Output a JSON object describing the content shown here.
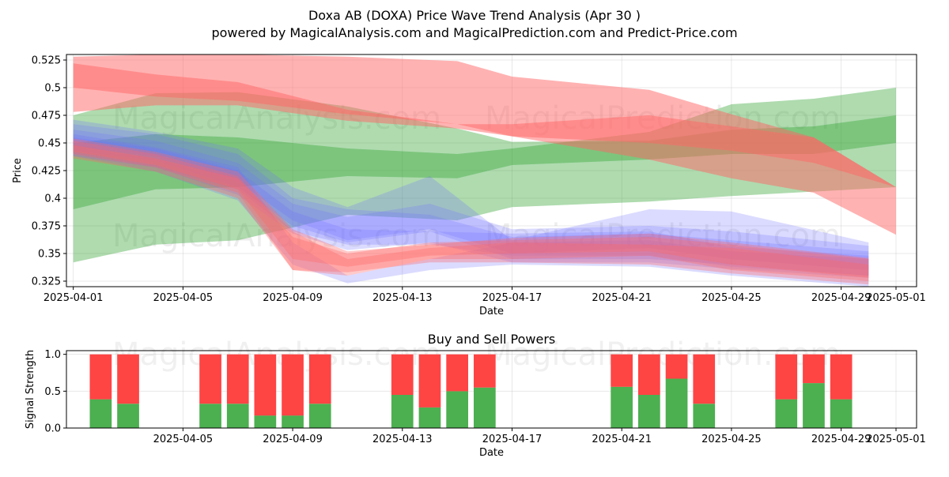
{
  "title_line1": "Doxa AB (DOXA) Price Wave Trend Analysis (Apr 30 )",
  "title_line2": "powered by MagicalAnalysis.com and MagicalPrediction.com and Predict-Price.com",
  "watermark_1": "MagicalAnalysis.com",
  "watermark_2": "MagicalPrediction.com",
  "colors": {
    "green_band": "#2ca02c",
    "red_band": "#ff6666",
    "blue_band": "#6f6fff",
    "buy": "#4caf50",
    "sell": "#ff4444"
  },
  "chart_data": [
    {
      "type": "area",
      "title": "",
      "xlabel": "Date",
      "ylabel": "Price",
      "x_range": [
        "2025-03-31T18:00",
        "2025-05-01T18:00"
      ],
      "ylim": [
        0.32,
        0.53
      ],
      "x_ticks": [
        "2025-04-01",
        "2025-04-05",
        "2025-04-09",
        "2025-04-13",
        "2025-04-17",
        "2025-04-21",
        "2025-04-25",
        "2025-04-29",
        "2025-05-01"
      ],
      "y_ticks": [
        0.325,
        0.35,
        0.375,
        0.4,
        0.425,
        0.45,
        0.475,
        0.5,
        0.525
      ],
      "grid": true,
      "series": [
        {
          "color": "green",
          "x": [
            "2025-04-01",
            "2025-04-04",
            "2025-04-07",
            "2025-04-11",
            "2025-04-15",
            "2025-04-17",
            "2025-04-22",
            "2025-04-25",
            "2025-04-28",
            "2025-05-01"
          ],
          "upper": [
            0.475,
            0.495,
            0.496,
            0.483,
            0.463,
            0.451,
            0.452,
            0.462,
            0.465,
            0.475
          ],
          "lower": [
            0.39,
            0.408,
            0.41,
            0.42,
            0.418,
            0.43,
            0.435,
            0.44,
            0.44,
            0.45
          ]
        },
        {
          "color": "green",
          "x": [
            "2025-04-01",
            "2025-04-04",
            "2025-04-07",
            "2025-04-11",
            "2025-04-15",
            "2025-04-17",
            "2025-04-22",
            "2025-04-25",
            "2025-04-28",
            "2025-05-01"
          ],
          "upper": [
            0.45,
            0.458,
            0.455,
            0.445,
            0.44,
            0.445,
            0.46,
            0.485,
            0.49,
            0.5
          ],
          "lower": [
            0.342,
            0.358,
            0.362,
            0.385,
            0.38,
            0.392,
            0.397,
            0.402,
            0.406,
            0.41
          ]
        },
        {
          "color": "red",
          "x": [
            "2025-04-01",
            "2025-04-04",
            "2025-04-07",
            "2025-04-11",
            "2025-04-15",
            "2025-04-17",
            "2025-04-22",
            "2025-04-25",
            "2025-04-28",
            "2025-05-01"
          ],
          "upper": [
            0.528,
            0.53,
            0.53,
            0.528,
            0.524,
            0.51,
            0.498,
            0.476,
            0.455,
            0.41
          ],
          "lower": [
            0.5,
            0.492,
            0.488,
            0.476,
            0.467,
            0.456,
            0.45,
            0.443,
            0.432,
            0.41
          ]
        },
        {
          "color": "red",
          "x": [
            "2025-04-01",
            "2025-04-04",
            "2025-04-07",
            "2025-04-11",
            "2025-04-15",
            "2025-04-17",
            "2025-04-22",
            "2025-04-25",
            "2025-04-28",
            "2025-05-01"
          ],
          "upper": [
            0.522,
            0.512,
            0.505,
            0.48,
            0.467,
            0.467,
            0.475,
            0.465,
            0.455,
            0.41
          ],
          "lower": [
            0.478,
            0.484,
            0.484,
            0.47,
            0.463,
            0.456,
            0.435,
            0.418,
            0.405,
            0.367
          ]
        },
        {
          "color": "blue",
          "x": [
            "2025-04-01",
            "2025-04-04",
            "2025-04-07",
            "2025-04-09",
            "2025-04-11",
            "2025-04-14",
            "2025-04-17",
            "2025-04-22",
            "2025-04-25",
            "2025-04-30"
          ],
          "upper": [
            0.467,
            0.458,
            0.44,
            0.4,
            0.39,
            0.385,
            0.365,
            0.368,
            0.362,
            0.352
          ],
          "lower": [
            0.443,
            0.434,
            0.41,
            0.375,
            0.36,
            0.37,
            0.345,
            0.345,
            0.34,
            0.33
          ]
        },
        {
          "color": "blue",
          "x": [
            "2025-04-01",
            "2025-04-04",
            "2025-04-07",
            "2025-04-09",
            "2025-04-11",
            "2025-04-14",
            "2025-04-17",
            "2025-04-22",
            "2025-04-25",
            "2025-04-30"
          ],
          "upper": [
            0.462,
            0.452,
            0.432,
            0.395,
            0.383,
            0.395,
            0.372,
            0.375,
            0.37,
            0.357
          ],
          "lower": [
            0.44,
            0.428,
            0.403,
            0.368,
            0.353,
            0.36,
            0.342,
            0.342,
            0.336,
            0.328
          ]
        },
        {
          "color": "blue",
          "x": [
            "2025-04-01",
            "2025-04-04",
            "2025-04-07",
            "2025-04-09",
            "2025-04-11",
            "2025-04-14",
            "2025-04-17",
            "2025-04-22",
            "2025-04-25",
            "2025-04-30"
          ],
          "upper": [
            0.471,
            0.46,
            0.445,
            0.41,
            0.392,
            0.42,
            0.362,
            0.39,
            0.388,
            0.36
          ],
          "lower": [
            0.447,
            0.438,
            0.415,
            0.38,
            0.362,
            0.372,
            0.35,
            0.355,
            0.345,
            0.335
          ]
        },
        {
          "color": "blue",
          "x": [
            "2025-04-01",
            "2025-04-04",
            "2025-04-07",
            "2025-04-09",
            "2025-04-11",
            "2025-04-14",
            "2025-04-17",
            "2025-04-22",
            "2025-04-25",
            "2025-04-30"
          ],
          "upper": [
            0.458,
            0.446,
            0.428,
            0.36,
            0.33,
            0.345,
            0.36,
            0.362,
            0.352,
            0.345
          ],
          "lower": [
            0.438,
            0.424,
            0.398,
            0.34,
            0.323,
            0.335,
            0.34,
            0.338,
            0.33,
            0.32
          ]
        },
        {
          "color": "blue",
          "x": [
            "2025-04-01",
            "2025-04-04",
            "2025-04-07",
            "2025-04-09",
            "2025-04-11",
            "2025-04-14",
            "2025-04-17",
            "2025-04-22",
            "2025-04-25",
            "2025-04-30"
          ],
          "upper": [
            0.455,
            0.445,
            0.425,
            0.388,
            0.372,
            0.37,
            0.368,
            0.37,
            0.356,
            0.348
          ],
          "lower": [
            0.438,
            0.428,
            0.408,
            0.37,
            0.358,
            0.358,
            0.348,
            0.348,
            0.338,
            0.33
          ]
        },
        {
          "color": "red",
          "x": [
            "2025-04-01",
            "2025-04-04",
            "2025-04-07",
            "2025-04-09",
            "2025-04-11",
            "2025-04-14",
            "2025-04-17",
            "2025-04-22",
            "2025-04-25",
            "2025-04-30"
          ],
          "upper": [
            0.452,
            0.44,
            0.42,
            0.365,
            0.35,
            0.36,
            0.362,
            0.365,
            0.358,
            0.345
          ],
          "lower": [
            0.44,
            0.428,
            0.405,
            0.335,
            0.33,
            0.345,
            0.345,
            0.348,
            0.335,
            0.325
          ]
        },
        {
          "color": "red",
          "x": [
            "2025-04-01",
            "2025-04-04",
            "2025-04-07",
            "2025-04-09",
            "2025-04-11",
            "2025-04-14",
            "2025-04-17",
            "2025-04-22",
            "2025-04-25",
            "2025-04-30"
          ],
          "upper": [
            0.448,
            0.436,
            0.418,
            0.37,
            0.345,
            0.355,
            0.36,
            0.358,
            0.355,
            0.34
          ],
          "lower": [
            0.436,
            0.424,
            0.4,
            0.335,
            0.333,
            0.342,
            0.342,
            0.34,
            0.332,
            0.322
          ]
        },
        {
          "color": "red",
          "x": [
            "2025-04-01",
            "2025-04-04",
            "2025-04-07",
            "2025-04-09",
            "2025-04-11",
            "2025-04-14",
            "2025-04-17",
            "2025-04-22",
            "2025-04-25",
            "2025-04-30"
          ],
          "upper": [
            0.454,
            0.442,
            0.424,
            0.372,
            0.352,
            0.358,
            0.364,
            0.368,
            0.36,
            0.346
          ],
          "lower": [
            0.442,
            0.43,
            0.408,
            0.345,
            0.338,
            0.348,
            0.35,
            0.352,
            0.34,
            0.328
          ]
        }
      ]
    },
    {
      "type": "bar",
      "title": "Buy and Sell Powers",
      "xlabel": "Date",
      "ylabel": "Signal Strength",
      "x_range": [
        "2025-03-31T18:00",
        "2025-05-01T18:00"
      ],
      "ylim": [
        0,
        1.05
      ],
      "x_ticks": [
        "2025-04-05",
        "2025-04-09",
        "2025-04-13",
        "2025-04-17",
        "2025-04-21",
        "2025-04-25",
        "2025-04-29",
        "2025-05-01"
      ],
      "y_ticks": [
        "0.0",
        "0.5",
        "1.0"
      ],
      "grid": true,
      "dates": [
        "2025-04-02",
        "2025-04-03",
        "2025-04-06",
        "2025-04-07",
        "2025-04-08",
        "2025-04-09",
        "2025-04-10",
        "2025-04-13",
        "2025-04-14",
        "2025-04-15",
        "2025-04-16",
        "2025-04-21",
        "2025-04-22",
        "2025-04-23",
        "2025-04-24",
        "2025-04-27",
        "2025-04-28",
        "2025-04-29"
      ],
      "series": [
        {
          "color": "green",
          "values": [
            0.39,
            0.33,
            0.33,
            0.33,
            0.17,
            0.17,
            0.33,
            0.45,
            0.28,
            0.5,
            0.55,
            0.56,
            0.45,
            0.67,
            0.33,
            0.39,
            0.61,
            0.39
          ]
        },
        {
          "color": "red",
          "values": [
            0.61,
            0.67,
            0.67,
            0.67,
            0.83,
            0.83,
            0.67,
            0.55,
            0.72,
            0.5,
            0.45,
            0.44,
            0.55,
            0.33,
            0.67,
            0.61,
            0.39,
            0.61
          ]
        }
      ]
    }
  ]
}
